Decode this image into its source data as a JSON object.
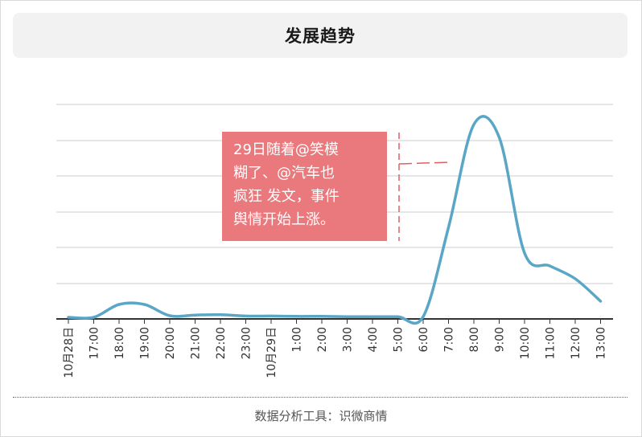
{
  "title": "发展趋势",
  "annotation": {
    "lines": [
      "29日随着@笑模",
      "糊了、@汽车也",
      "疯狂 发文，事件",
      "舆情开始上涨。"
    ]
  },
  "footer": "数据分析工具：识微商情",
  "colors": {
    "line": "#5aa6c6",
    "annotation_bg": "#e9797c",
    "annotation_marker": "#e05f66",
    "grid": "#cccccc",
    "axis": "#333333"
  },
  "chart_data": {
    "type": "line",
    "title": "",
    "xlabel": "",
    "ylabel": "",
    "grid": true,
    "y_axis_labels_visible": false,
    "categories": [
      "10月28日",
      "17:00",
      "18:00",
      "19:00",
      "20:00",
      "21:00",
      "22:00",
      "23:00",
      "10月29日",
      "1:00",
      "2:00",
      "3:00",
      "4:00",
      "5:00",
      "6:00",
      "7:00",
      "8:00",
      "9:00",
      "10:00",
      "11:00",
      "12:00",
      "13:00"
    ],
    "series": [
      {
        "values": [
          0,
          0,
          4,
          4,
          0.5,
          0.7,
          0.8,
          0.4,
          0.4,
          0.3,
          0.3,
          0.2,
          0.2,
          0.2,
          0.2,
          28,
          60,
          56,
          20,
          16,
          12,
          5
        ]
      }
    ],
    "ylim": [
      0,
      60
    ]
  }
}
